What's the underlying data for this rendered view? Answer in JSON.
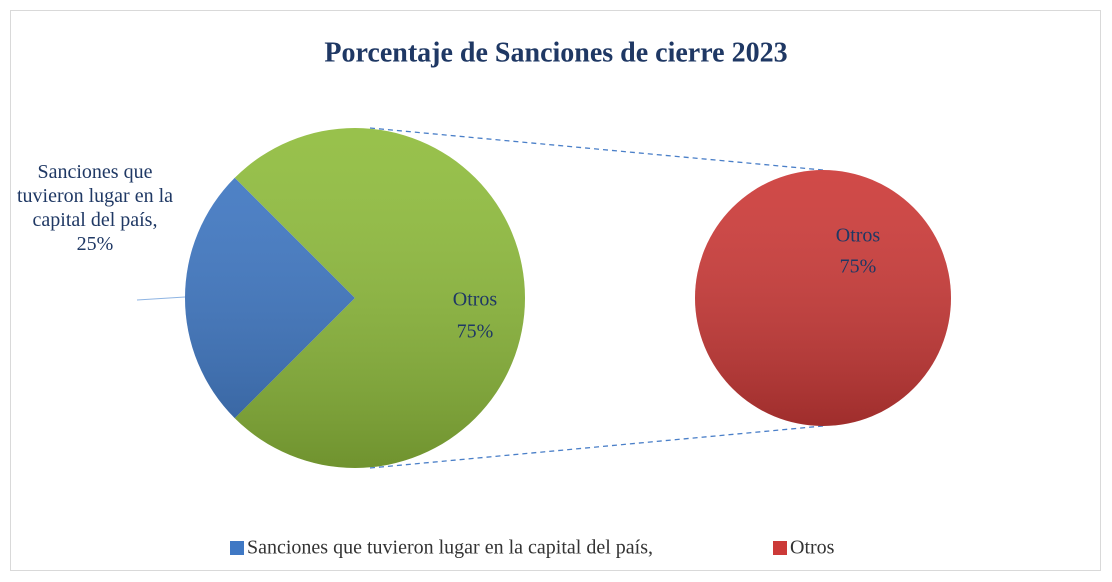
{
  "chart_data": {
    "type": "pie_of_pie",
    "title": "Porcentaje de Sanciones de cierre 2023",
    "categories": [
      "Sanciones que tuvieron lugar en la capital del país,",
      "Otros"
    ],
    "values": [
      25,
      75
    ],
    "value_labels": [
      "25%",
      "75%"
    ],
    "colors": [
      "#3f78c4",
      "#8fbc3c"
    ],
    "secondary": {
      "categories": [
        "Otros"
      ],
      "values": [
        75
      ],
      "value_labels": [
        "75%"
      ],
      "colors": [
        "#cc3a38"
      ]
    },
    "legend": "bottom"
  }
}
